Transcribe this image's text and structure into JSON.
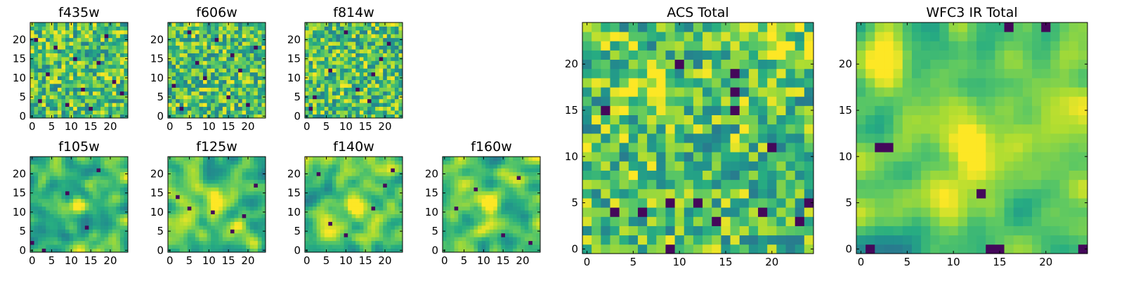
{
  "figure": {
    "colormap": "viridis",
    "palette": [
      "#440154",
      "#3b528b",
      "#21918c",
      "#5ec962",
      "#fde725"
    ]
  },
  "chart_data": [
    {
      "type": "heatmap",
      "title": "f435w",
      "grid_size": 25,
      "xlim": [
        -0.5,
        24.5
      ],
      "ylim": [
        -0.5,
        24.5
      ],
      "xticks": [
        0,
        5,
        10,
        15,
        20
      ],
      "yticks": [
        0,
        5,
        10,
        15,
        20
      ],
      "texture": "fine",
      "seed": 11,
      "dark_spots": [
        [
          2,
          4
        ],
        [
          9,
          3
        ],
        [
          13,
          7
        ],
        [
          17,
          14
        ],
        [
          6,
          18
        ],
        [
          21,
          9
        ],
        [
          4,
          11
        ],
        [
          19,
          21
        ],
        [
          11,
          15
        ],
        [
          15,
          2
        ],
        [
          1,
          20
        ],
        [
          23,
          6
        ]
      ],
      "bright_spots": []
    },
    {
      "type": "heatmap",
      "title": "f606w",
      "grid_size": 25,
      "xlim": [
        -0.5,
        24.5
      ],
      "ylim": [
        -0.5,
        24.5
      ],
      "xticks": [
        0,
        5,
        10,
        15,
        20
      ],
      "yticks": [
        0,
        5,
        10,
        15,
        20
      ],
      "texture": "fine",
      "seed": 23,
      "dark_spots": [
        [
          3,
          2
        ],
        [
          15,
          5
        ],
        [
          18,
          12
        ],
        [
          7,
          14
        ],
        [
          12,
          20
        ],
        [
          22,
          18
        ],
        [
          1,
          8
        ],
        [
          20,
          3
        ],
        [
          9,
          10
        ],
        [
          16,
          16
        ],
        [
          5,
          22
        ]
      ],
      "bright_spots": []
    },
    {
      "type": "heatmap",
      "title": "f814w",
      "grid_size": 25,
      "xlim": [
        -0.5,
        24.5
      ],
      "ylim": [
        -0.5,
        24.5
      ],
      "xticks": [
        0,
        5,
        10,
        15,
        20
      ],
      "yticks": [
        0,
        5,
        10,
        15,
        20
      ],
      "texture": "fine",
      "seed": 37,
      "dark_spots": [
        [
          2,
          5
        ],
        [
          16,
          4
        ],
        [
          21,
          19
        ],
        [
          13,
          7
        ],
        [
          10,
          22
        ],
        [
          6,
          12
        ],
        [
          17,
          11
        ],
        [
          1,
          2
        ],
        [
          19,
          15
        ]
      ],
      "bright_spots": []
    },
    {
      "type": "heatmap",
      "title": "f105w",
      "grid_size": 25,
      "xlim": [
        -0.5,
        24.5
      ],
      "ylim": [
        -0.5,
        24.5
      ],
      "xticks": [
        0,
        5,
        10,
        15,
        20
      ],
      "yticks": [
        0,
        5,
        10,
        15,
        20
      ],
      "texture": "smooth",
      "seed": 41,
      "dark_spots": [
        [
          14,
          6
        ],
        [
          17,
          21
        ],
        [
          0,
          2
        ],
        [
          3,
          0
        ],
        [
          9,
          15
        ]
      ],
      "bright_spots": [
        [
          12,
          12
        ]
      ]
    },
    {
      "type": "heatmap",
      "title": "f125w",
      "grid_size": 25,
      "xlim": [
        -0.5,
        24.5
      ],
      "ylim": [
        -0.5,
        24.5
      ],
      "xticks": [
        0,
        5,
        10,
        15,
        20
      ],
      "yticks": [
        0,
        5,
        10,
        15,
        20
      ],
      "texture": "smooth",
      "seed": 53,
      "dark_spots": [
        [
          5,
          11
        ],
        [
          11,
          10
        ],
        [
          16,
          5
        ],
        [
          22,
          17
        ],
        [
          2,
          14
        ],
        [
          19,
          9
        ]
      ],
      "bright_spots": [
        [
          12,
          12
        ],
        [
          21,
          2
        ]
      ]
    },
    {
      "type": "heatmap",
      "title": "f140w",
      "grid_size": 25,
      "xlim": [
        -0.5,
        24.5
      ],
      "ylim": [
        -0.5,
        24.5
      ],
      "xticks": [
        0,
        5,
        10,
        15,
        20
      ],
      "yticks": [
        0,
        5,
        10,
        15,
        20
      ],
      "texture": "smooth",
      "seed": 67,
      "dark_spots": [
        [
          3,
          20
        ],
        [
          20,
          17
        ],
        [
          17,
          11
        ],
        [
          10,
          4
        ],
        [
          22,
          21
        ],
        [
          6,
          7
        ]
      ],
      "bright_spots": [
        [
          12,
          12
        ]
      ]
    },
    {
      "type": "heatmap",
      "title": "f160w",
      "grid_size": 25,
      "xlim": [
        -0.5,
        24.5
      ],
      "ylim": [
        -0.5,
        24.5
      ],
      "xticks": [
        0,
        5,
        10,
        15,
        20
      ],
      "yticks": [
        0,
        5,
        10,
        15,
        20
      ],
      "texture": "smooth",
      "seed": 71,
      "dark_spots": [
        [
          3,
          11
        ],
        [
          15,
          4
        ],
        [
          22,
          2
        ],
        [
          19,
          19
        ],
        [
          8,
          16
        ]
      ],
      "bright_spots": [
        [
          12,
          12
        ]
      ]
    },
    {
      "type": "heatmap",
      "title": "ACS Total",
      "grid_size": 25,
      "xlim": [
        -0.5,
        24.5
      ],
      "ylim": [
        -0.5,
        24.5
      ],
      "xticks": [
        0,
        5,
        10,
        15,
        20
      ],
      "yticks": [
        0,
        5,
        10,
        15,
        20
      ],
      "texture": "blocky",
      "seed": 83,
      "dark_spots": [
        [
          16,
          19
        ],
        [
          16,
          17
        ],
        [
          16,
          15
        ],
        [
          12,
          5
        ],
        [
          9,
          5
        ],
        [
          3,
          4
        ],
        [
          6,
          4
        ],
        [
          23,
          3
        ],
        [
          24,
          5
        ],
        [
          19,
          4
        ],
        [
          2,
          15
        ],
        [
          20,
          11
        ],
        [
          10,
          20
        ],
        [
          14,
          3
        ],
        [
          9,
          0
        ]
      ],
      "bright_spots": [
        [
          20,
          23
        ],
        [
          7,
          17
        ]
      ]
    },
    {
      "type": "heatmap",
      "title": "WFC3 IR Total",
      "grid_size": 25,
      "xlim": [
        -0.5,
        24.5
      ],
      "ylim": [
        -0.5,
        24.5
      ],
      "xticks": [
        0,
        5,
        10,
        15,
        20
      ],
      "yticks": [
        0,
        5,
        10,
        15,
        20
      ],
      "texture": "smooth",
      "seed": 97,
      "dark_spots": [
        [
          2,
          11
        ],
        [
          3,
          11
        ],
        [
          13,
          6
        ],
        [
          14,
          0
        ],
        [
          15,
          0
        ],
        [
          20,
          24
        ],
        [
          16,
          24
        ],
        [
          24,
          0
        ],
        [
          1,
          0
        ]
      ],
      "bright_spots": [
        [
          12,
          11
        ],
        [
          2,
          20
        ]
      ]
    }
  ]
}
